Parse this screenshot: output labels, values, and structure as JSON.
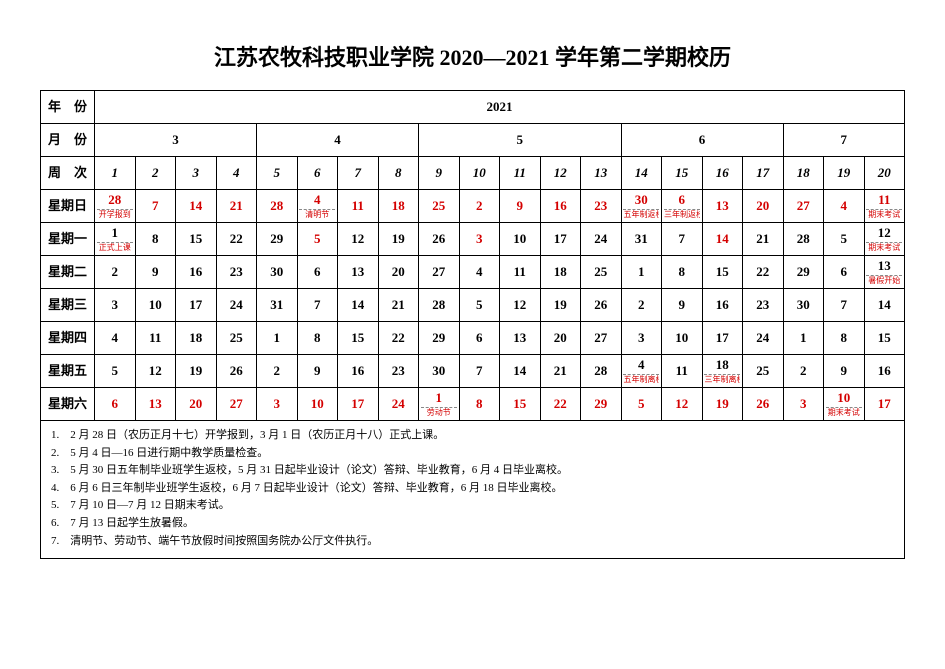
{
  "title": "江苏农牧科技职业学院 2020—2021 学年第二学期校历",
  "header": {
    "year_label": "年　份",
    "year_value": "2021",
    "month_label": "月　份",
    "week_label": "周　次",
    "months": [
      {
        "label": "3",
        "span": 4
      },
      {
        "label": "4",
        "span": 4
      },
      {
        "label": "5",
        "span": 5
      },
      {
        "label": "6",
        "span": 4
      },
      {
        "label": "7",
        "span": 3
      }
    ],
    "weeks": [
      "1",
      "2",
      "3",
      "4",
      "5",
      "6",
      "7",
      "8",
      "9",
      "10",
      "11",
      "12",
      "13",
      "14",
      "15",
      "16",
      "17",
      "18",
      "19",
      "20"
    ]
  },
  "rows": [
    {
      "label": "星期日",
      "cells": [
        {
          "n": "28",
          "red": true,
          "note": "开学报到"
        },
        {
          "n": "7",
          "red": true
        },
        {
          "n": "14",
          "red": true
        },
        {
          "n": "21",
          "red": true
        },
        {
          "n": "28",
          "red": true
        },
        {
          "n": "4",
          "red": true,
          "note": "清明节"
        },
        {
          "n": "11",
          "red": true
        },
        {
          "n": "18",
          "red": true
        },
        {
          "n": "25",
          "red": true
        },
        {
          "n": "2",
          "red": true
        },
        {
          "n": "9",
          "red": true
        },
        {
          "n": "16",
          "red": true
        },
        {
          "n": "23",
          "red": true
        },
        {
          "n": "30",
          "red": true,
          "note": "五年制返校"
        },
        {
          "n": "6",
          "red": true,
          "note": "三年制返校"
        },
        {
          "n": "13",
          "red": true
        },
        {
          "n": "20",
          "red": true
        },
        {
          "n": "27",
          "red": true
        },
        {
          "n": "4",
          "red": true
        },
        {
          "n": "11",
          "red": true,
          "note": "期末考试"
        }
      ]
    },
    {
      "label": "星期一",
      "cells": [
        {
          "n": "1",
          "note": "正式上课"
        },
        {
          "n": "8"
        },
        {
          "n": "15"
        },
        {
          "n": "22"
        },
        {
          "n": "29"
        },
        {
          "n": "5",
          "red": true
        },
        {
          "n": "12"
        },
        {
          "n": "19"
        },
        {
          "n": "26"
        },
        {
          "n": "3",
          "red": true
        },
        {
          "n": "10"
        },
        {
          "n": "17"
        },
        {
          "n": "24"
        },
        {
          "n": "31"
        },
        {
          "n": "7"
        },
        {
          "n": "14",
          "red": true
        },
        {
          "n": "21"
        },
        {
          "n": "28"
        },
        {
          "n": "5"
        },
        {
          "n": "12",
          "note": "期末考试"
        }
      ]
    },
    {
      "label": "星期二",
      "cells": [
        {
          "n": "2"
        },
        {
          "n": "9"
        },
        {
          "n": "16"
        },
        {
          "n": "23"
        },
        {
          "n": "30"
        },
        {
          "n": "6"
        },
        {
          "n": "13"
        },
        {
          "n": "20"
        },
        {
          "n": "27"
        },
        {
          "n": "4"
        },
        {
          "n": "11"
        },
        {
          "n": "18"
        },
        {
          "n": "25"
        },
        {
          "n": "1"
        },
        {
          "n": "8"
        },
        {
          "n": "15"
        },
        {
          "n": "22"
        },
        {
          "n": "29"
        },
        {
          "n": "6"
        },
        {
          "n": "13",
          "note": "暑假开始"
        }
      ]
    },
    {
      "label": "星期三",
      "cells": [
        {
          "n": "3"
        },
        {
          "n": "10"
        },
        {
          "n": "17"
        },
        {
          "n": "24"
        },
        {
          "n": "31"
        },
        {
          "n": "7"
        },
        {
          "n": "14"
        },
        {
          "n": "21"
        },
        {
          "n": "28"
        },
        {
          "n": "5"
        },
        {
          "n": "12"
        },
        {
          "n": "19"
        },
        {
          "n": "26"
        },
        {
          "n": "2"
        },
        {
          "n": "9"
        },
        {
          "n": "16"
        },
        {
          "n": "23"
        },
        {
          "n": "30"
        },
        {
          "n": "7"
        },
        {
          "n": "14"
        }
      ]
    },
    {
      "label": "星期四",
      "cells": [
        {
          "n": "4"
        },
        {
          "n": "11"
        },
        {
          "n": "18"
        },
        {
          "n": "25"
        },
        {
          "n": "1"
        },
        {
          "n": "8"
        },
        {
          "n": "15"
        },
        {
          "n": "22"
        },
        {
          "n": "29"
        },
        {
          "n": "6"
        },
        {
          "n": "13"
        },
        {
          "n": "20"
        },
        {
          "n": "27"
        },
        {
          "n": "3"
        },
        {
          "n": "10"
        },
        {
          "n": "17"
        },
        {
          "n": "24"
        },
        {
          "n": "1"
        },
        {
          "n": "8"
        },
        {
          "n": "15"
        }
      ]
    },
    {
      "label": "星期五",
      "cells": [
        {
          "n": "5"
        },
        {
          "n": "12"
        },
        {
          "n": "19"
        },
        {
          "n": "26"
        },
        {
          "n": "2"
        },
        {
          "n": "9"
        },
        {
          "n": "16"
        },
        {
          "n": "23"
        },
        {
          "n": "30"
        },
        {
          "n": "7"
        },
        {
          "n": "14"
        },
        {
          "n": "21"
        },
        {
          "n": "28"
        },
        {
          "n": "4",
          "note": "五年制离校"
        },
        {
          "n": "11"
        },
        {
          "n": "18",
          "note": "三年制离校"
        },
        {
          "n": "25"
        },
        {
          "n": "2"
        },
        {
          "n": "9"
        },
        {
          "n": "16"
        }
      ]
    },
    {
      "label": "星期六",
      "cells": [
        {
          "n": "6",
          "red": true
        },
        {
          "n": "13",
          "red": true
        },
        {
          "n": "20",
          "red": true
        },
        {
          "n": "27",
          "red": true
        },
        {
          "n": "3",
          "red": true
        },
        {
          "n": "10",
          "red": true
        },
        {
          "n": "17",
          "red": true
        },
        {
          "n": "24",
          "red": true
        },
        {
          "n": "1",
          "red": true,
          "note": "劳动节"
        },
        {
          "n": "8",
          "red": true
        },
        {
          "n": "15",
          "red": true
        },
        {
          "n": "22",
          "red": true
        },
        {
          "n": "29",
          "red": true
        },
        {
          "n": "5",
          "red": true
        },
        {
          "n": "12",
          "red": true
        },
        {
          "n": "19",
          "red": true
        },
        {
          "n": "26",
          "red": true
        },
        {
          "n": "3",
          "red": true
        },
        {
          "n": "10",
          "red": true,
          "note": "期末考试"
        },
        {
          "n": "17",
          "red": true
        }
      ]
    }
  ],
  "footnotes": [
    "1.　2 月 28 日（农历正月十七）开学报到，3 月 1 日（农历正月十八）正式上课。",
    "2.　5 月 4 日—16 日进行期中教学质量检查。",
    "3.　5 月 30 日五年制毕业班学生返校，5 月 31 日起毕业设计（论文）答辩、毕业教育，6 月 4 日毕业离校。",
    "4.　6 月 6 日三年制毕业班学生返校，6 月 7 日起毕业设计（论文）答辩、毕业教育，6 月 18 日毕业离校。",
    "5.　7 月 10 日—7 月 12 日期末考试。",
    "6.　7 月 13 日起学生放暑假。",
    "7.　清明节、劳动节、端午节放假时间按照国务院办公厅文件执行。"
  ],
  "style": {
    "red": "#d40000",
    "black": "#000000",
    "title_fontsize": 22,
    "body_fontsize": 12
  }
}
